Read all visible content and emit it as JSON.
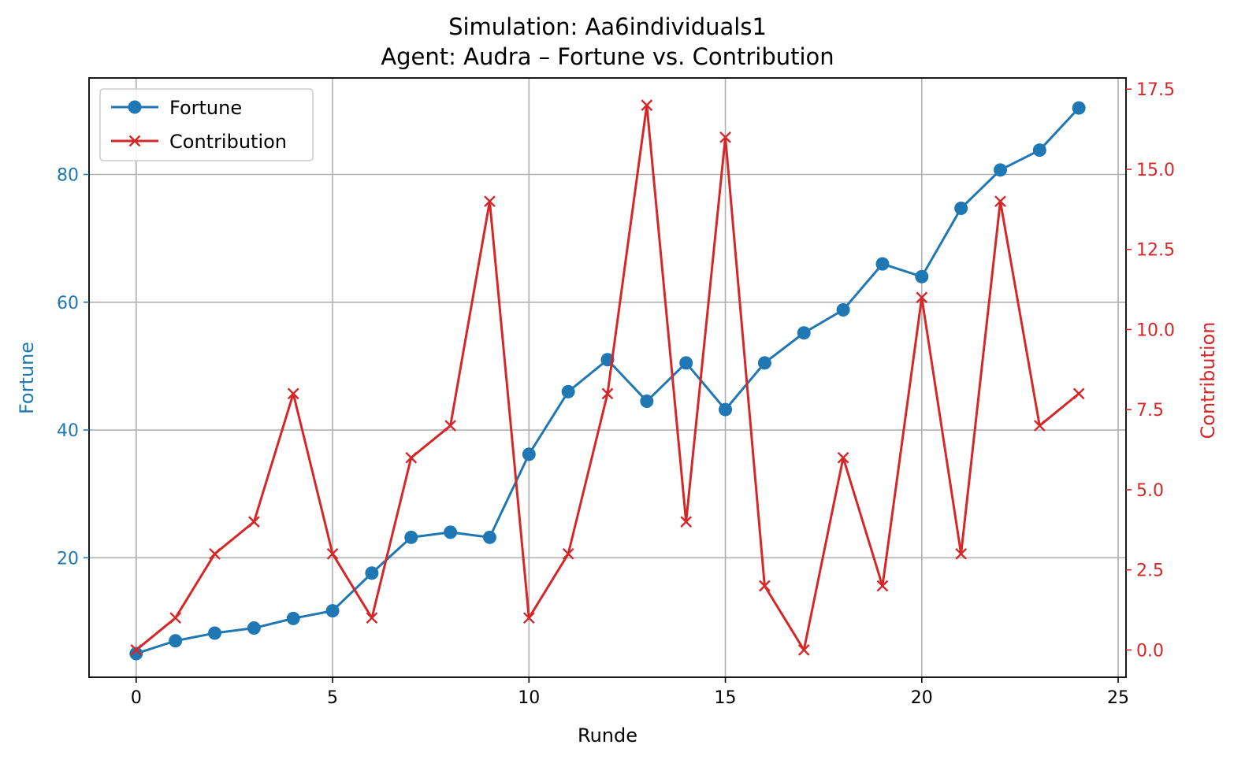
{
  "chart_data": {
    "type": "line",
    "title_line1": "Simulation: Aa6individuals1",
    "title_line2": "Agent: Audra – Fortune vs. Contribution",
    "xlabel": "Runde",
    "ylabel_left": "Fortune",
    "ylabel_right": "Contribution",
    "xlim": [
      -1.2,
      25.2
    ],
    "ylim_left": [
      1.3,
      95.1
    ],
    "ylim_right": [
      -0.85,
      17.85
    ],
    "x_ticks": [
      0,
      5,
      10,
      15,
      20,
      25
    ],
    "y_left_ticks": [
      20,
      40,
      60,
      80
    ],
    "y_right_ticks": [
      0.0,
      2.5,
      5.0,
      7.5,
      10.0,
      12.5,
      15.0,
      17.5
    ],
    "grid": true,
    "legend_position": "top-left",
    "x": [
      0,
      1,
      2,
      3,
      4,
      5,
      6,
      7,
      8,
      9,
      10,
      11,
      12,
      13,
      14,
      15,
      16,
      17,
      18,
      19,
      20,
      21,
      22,
      23,
      24
    ],
    "series": [
      {
        "name": "Fortune",
        "axis": "left",
        "color": "#1f77b4",
        "marker": "circle",
        "values": [
          5.0,
          7.0,
          8.2,
          9.0,
          10.5,
          11.7,
          17.6,
          23.2,
          24.0,
          23.2,
          36.2,
          46.0,
          51.0,
          44.5,
          50.5,
          43.2,
          50.5,
          55.2,
          58.8,
          66.0,
          64.0,
          74.7,
          80.7,
          83.8,
          90.4
        ]
      },
      {
        "name": "Contribution",
        "axis": "right",
        "color": "#d62728",
        "marker": "x",
        "values": [
          0,
          1,
          3,
          4,
          8,
          3,
          1,
          6,
          7,
          14,
          1,
          3,
          8,
          17,
          4,
          16,
          2,
          0,
          6,
          2,
          11,
          3,
          14,
          7,
          8
        ]
      }
    ]
  }
}
